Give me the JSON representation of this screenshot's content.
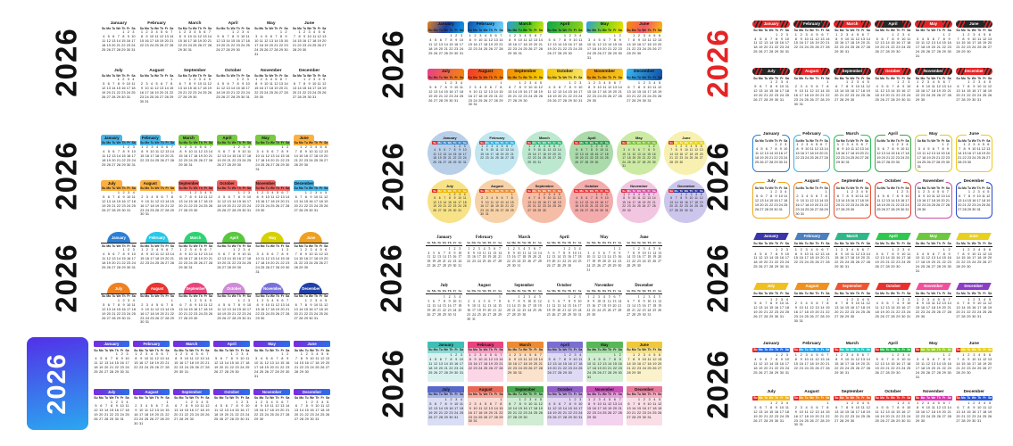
{
  "year": "2026",
  "day_headers": [
    "Su",
    "Mo",
    "Tu",
    "We",
    "Th",
    "Fr",
    "Sa"
  ],
  "sunday_color": "#e42527",
  "months": [
    {
      "name": "January",
      "days": 31,
      "start": 4
    },
    {
      "name": "February",
      "days": 28,
      "start": 0
    },
    {
      "name": "March",
      "days": 31,
      "start": 0
    },
    {
      "name": "April",
      "days": 30,
      "start": 3
    },
    {
      "name": "May",
      "days": 31,
      "start": 5
    },
    {
      "name": "June",
      "days": 30,
      "start": 1
    },
    {
      "name": "July",
      "days": 31,
      "start": 3
    },
    {
      "name": "August",
      "days": 31,
      "start": 6
    },
    {
      "name": "September",
      "days": 30,
      "start": 2
    },
    {
      "name": "October",
      "days": 31,
      "start": 4
    },
    {
      "name": "November",
      "days": 30,
      "start": 0
    },
    {
      "name": "December",
      "days": 31,
      "start": 2
    }
  ],
  "variants": [
    {
      "id": "v1",
      "type": "plain",
      "year_color": "#111111"
    },
    {
      "id": "v2",
      "type": "gradient-block",
      "year_color": "#111111",
      "colors": [
        [
          "#e8821e",
          "#1b3fa3",
          "#0aa6f0"
        ],
        [
          "#0e4da4",
          "#2a9de8",
          "#7fd4f5"
        ],
        [
          "#2a9de8",
          "#3fc020",
          "#d8e810"
        ],
        [
          "#0aa64a",
          "#9ad410"
        ],
        [
          "#2a9de8",
          "#7fd410",
          "#f5e000"
        ],
        [
          "#f59000",
          "#f5566a",
          "#f5c800"
        ],
        [
          "#e83e8c",
          "#f58a00"
        ],
        [
          "#f03a2a",
          "#f58a00"
        ],
        [
          "#f58a00",
          "#f5d200"
        ],
        [
          "#f5c200",
          "#f5e66b"
        ],
        [
          "#f59800",
          "#f5c820"
        ],
        [
          "#38b8f5",
          "#0e4da4"
        ]
      ]
    },
    {
      "id": "v3",
      "type": "pill",
      "year_color": "#e42527",
      "colors": [
        "#e42527",
        "#262626",
        "#e42527",
        "#262626",
        "#e42527",
        "#262626",
        "#262626",
        "#e42527",
        "#262626",
        "#e42527",
        "#262626",
        "#e42527"
      ],
      "alt_colors": [
        "#262626",
        "#e42527",
        "#262626",
        "#e42527",
        "#262626",
        "#e42527",
        "#e42527",
        "#262626",
        "#e42527",
        "#262626",
        "#e42527",
        "#262626"
      ]
    },
    {
      "id": "v4",
      "type": "tab",
      "year_color": "#111111",
      "colors": [
        "#49b5e8",
        "#49b5e8",
        "#7ac943",
        "#7ac943",
        "#7ac943",
        "#fbb040",
        "#fbb040",
        "#fbb040",
        "#f0625f",
        "#f0625f",
        "#f0625f",
        "#49b5e8"
      ]
    },
    {
      "id": "v5",
      "type": "circle",
      "year_color": "#111111",
      "colors": [
        [
          "#b9cfe8",
          "#3e8fd4"
        ],
        [
          "#c2e6ef",
          "#2ab4e8"
        ],
        [
          "#bce8cf",
          "#2ebd77"
        ],
        [
          "#abdaab",
          "#2e9e4f"
        ],
        [
          "#cdeaa5",
          "#7ac32e"
        ],
        [
          "#f7f0b0",
          "#ecd500"
        ],
        [
          "#f7e287",
          "#eeb400"
        ],
        [
          "#f7d2a8",
          "#ee8c28"
        ],
        [
          "#f5bca6",
          "#ee7040"
        ],
        [
          "#f3acac",
          "#e83e3e"
        ],
        [
          "#f2c6e0",
          "#d84fa8"
        ],
        [
          "#cdc6ec",
          "#2a38a0"
        ]
      ]
    },
    {
      "id": "v6",
      "type": "outline",
      "year_color": "#111111",
      "colors": [
        "#2b7fd4",
        "#35b8e8",
        "#2ebd57",
        "#35a845",
        "#d8cc20",
        "#f0c820",
        "#f0a820",
        "#f08020",
        "#e85030",
        "#e03830",
        "#c84fa8",
        "#2848c8"
      ]
    },
    {
      "id": "v7",
      "type": "dome",
      "year_color": "#111111",
      "colors": [
        "#2b7fd4",
        "#29c8e8",
        "#2ed474",
        "#58c83e",
        "#d6d200",
        "#f0a020",
        "#f08020",
        "#e83430",
        "#e8447a",
        "#cf8ad8",
        "#7a70dc",
        "#2040a8"
      ]
    },
    {
      "id": "v8",
      "type": "serif",
      "year_color": "#111111"
    },
    {
      "id": "v9",
      "type": "banner",
      "year_color": "#111111",
      "colors": [
        "#3a35a8",
        "#4a7fc0",
        "#2eb88a",
        "#2ec84f",
        "#6ec83e",
        "#e8d020",
        "#f0c020",
        "#f0901e",
        "#f0542e",
        "#e83030",
        "#f04f9e",
        "#8a3ec8"
      ]
    },
    {
      "id": "v10",
      "type": "gradbar",
      "year_color": "#ffffff",
      "year_bg": [
        "#5230e8",
        "#2aa8f0"
      ],
      "bar": [
        "#7a2be0",
        "#2b6fe8"
      ]
    },
    {
      "id": "v11",
      "type": "block",
      "year_color": "#111111",
      "colors": [
        [
          "#3dbfb5",
          "#8fd9d4",
          "#d9f2f0"
        ],
        [
          "#e8457e",
          "#f2a0c0",
          "#fad6e6"
        ],
        [
          "#ed8b33",
          "#f5c08a",
          "#fae2cc"
        ],
        [
          "#7a6fd0",
          "#b0a8e4",
          "#dfdaf4"
        ],
        [
          "#58b858",
          "#a0d8a0",
          "#d2eed2"
        ],
        [
          "#f0c83e",
          "#f5e08a",
          "#fbf2cc"
        ],
        [
          "#5868c8",
          "#a8b4e4",
          "#dadef4"
        ],
        [
          "#e86858",
          "#f2a89c",
          "#fadad2"
        ],
        [
          "#4aa84f",
          "#98d09a",
          "#d0ecd2"
        ],
        [
          "#9060c8",
          "#c0a8e0",
          "#e2d6f2"
        ],
        [
          "#c84fb8",
          "#e0a0d8",
          "#f2d2ee"
        ],
        [
          "#e87898",
          "#f2b0c4",
          "#fadee6"
        ]
      ]
    },
    {
      "id": "v12",
      "type": "daybar",
      "year_color": "#111111",
      "colors": [
        "#2b6fe8",
        "#2b9fe8",
        "#2ec8c0",
        "#2eb84f",
        "#9ecf2e",
        "#e8d020",
        "#f0b81e",
        "#f0901e",
        "#f0602e",
        "#e83030",
        "#d83ab0",
        "#2b58d8"
      ]
    }
  ]
}
